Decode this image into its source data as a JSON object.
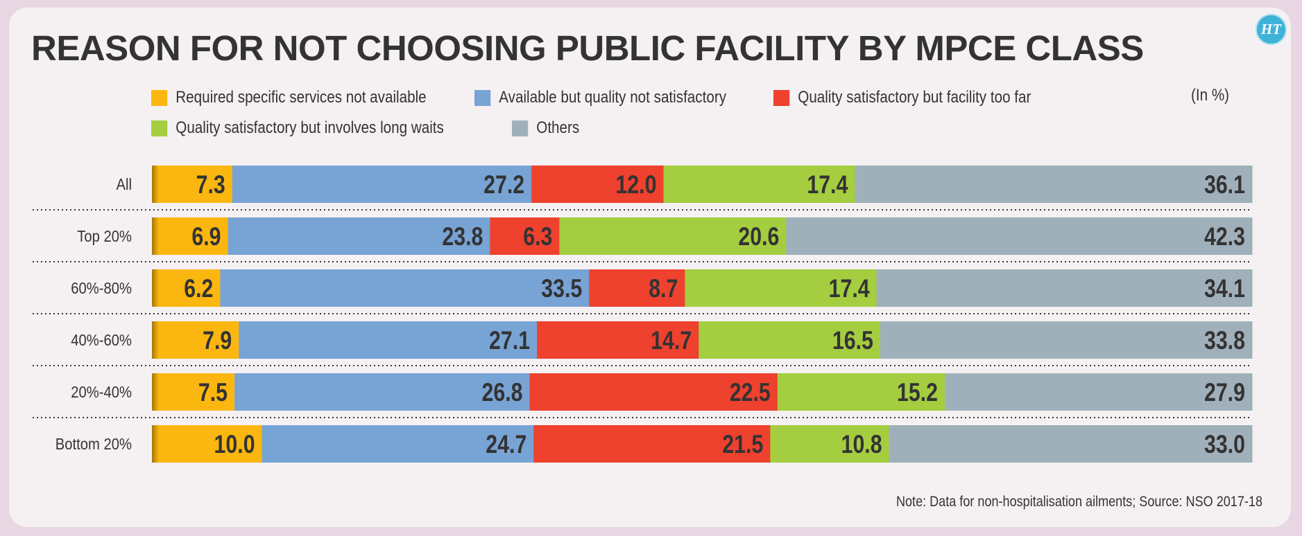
{
  "title": "REASON FOR NOT CHOOSING PUBLIC FACILITY BY MPCE CLASS",
  "logo_text": "HT",
  "unit_label": "(In %)",
  "note": "Note: Data for non-hospitalisation ailments; Source: NSO 2017-18",
  "chart_data": {
    "type": "bar",
    "orientation": "horizontal",
    "stacked": true,
    "title": "REASON FOR NOT CHOOSING PUBLIC FACILITY BY MPCE CLASS",
    "xlabel": "",
    "ylabel": "",
    "unit": "(In %)",
    "categories": [
      "All",
      "Top 20%",
      "60%-80%",
      "40%-60%",
      "20%-40%",
      "Bottom 20%"
    ],
    "series": [
      {
        "name": "Required specific services not available",
        "color": "#fbb710",
        "values": [
          7.3,
          6.9,
          6.2,
          7.9,
          7.5,
          10.0
        ]
      },
      {
        "name": "Available but quality not satisfactory",
        "color": "#78a3d5",
        "values": [
          27.2,
          23.8,
          33.5,
          27.1,
          26.8,
          24.7
        ]
      },
      {
        "name": "Quality satisfactory but facility too far",
        "color": "#ee412e",
        "values": [
          12.0,
          6.3,
          8.7,
          14.7,
          22.5,
          21.5
        ]
      },
      {
        "name": "Quality satisfactory but involves long waits",
        "color": "#a4cd40",
        "values": [
          17.4,
          20.6,
          17.4,
          16.5,
          15.2,
          10.8
        ]
      },
      {
        "name": "Others",
        "color": "#a0b0bb",
        "values": [
          36.1,
          42.3,
          34.1,
          33.8,
          27.9,
          33.0
        ]
      }
    ],
    "value_labels": [
      [
        "7.3",
        "27.2",
        "12.0",
        "17.4",
        "36.1"
      ],
      [
        "6.9",
        "23.8",
        "6.3",
        "20.6",
        "42.3"
      ],
      [
        "6.2",
        "33.5",
        "8.7",
        "17.4",
        "34.1"
      ],
      [
        "7.9",
        "27.1",
        "14.7",
        "16.5",
        "33.8"
      ],
      [
        "7.5",
        "26.8",
        "22.5",
        "15.2",
        "27.9"
      ],
      [
        "10.0",
        "24.7",
        "21.5",
        "10.8",
        "33.0"
      ]
    ],
    "legend_position": "top",
    "grid": false
  }
}
